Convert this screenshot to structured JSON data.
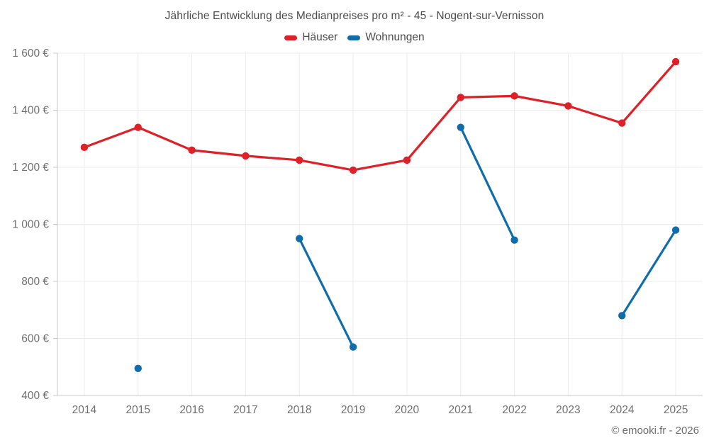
{
  "page": {
    "title": "Jährliche Entwicklung des Medianpreises pro m² - 45 - Nogent-sur-Vernisson",
    "copyright": "© emooki.fr - 2026"
  },
  "chart_data": {
    "type": "line",
    "title": "Jährliche Entwicklung des Medianpreises pro m² - 45 - Nogent-sur-Vernisson",
    "x": [
      "2014",
      "2015",
      "2016",
      "2017",
      "2018",
      "2019",
      "2020",
      "2021",
      "2022",
      "2023",
      "2024",
      "2025"
    ],
    "series": [
      {
        "name": "Häuser",
        "color": "#e01f26",
        "values": [
          1270,
          1340,
          1260,
          1240,
          1225,
          1190,
          1225,
          1445,
          1450,
          1415,
          1355,
          1570
        ]
      },
      {
        "name": "Wohnungen",
        "color": "#0f6dab",
        "values": [
          null,
          495,
          null,
          null,
          950,
          570,
          null,
          1340,
          945,
          null,
          680,
          980
        ]
      }
    ],
    "xlabel": "",
    "ylabel": "",
    "ylim": [
      400,
      1600
    ],
    "ytick_step": 200,
    "ytick_suffix": " €",
    "grid": true,
    "legend_position": "top",
    "gaps_note": "Wohnungen has no data for 2014, 2016, 2017, 2020, 2023"
  },
  "colors": {
    "grid": "#ececec",
    "axis": "#c9c9c9",
    "tick_label": "#707070",
    "title_text": "#4c4c4c",
    "copyright_text": "#6e6e6e"
  }
}
